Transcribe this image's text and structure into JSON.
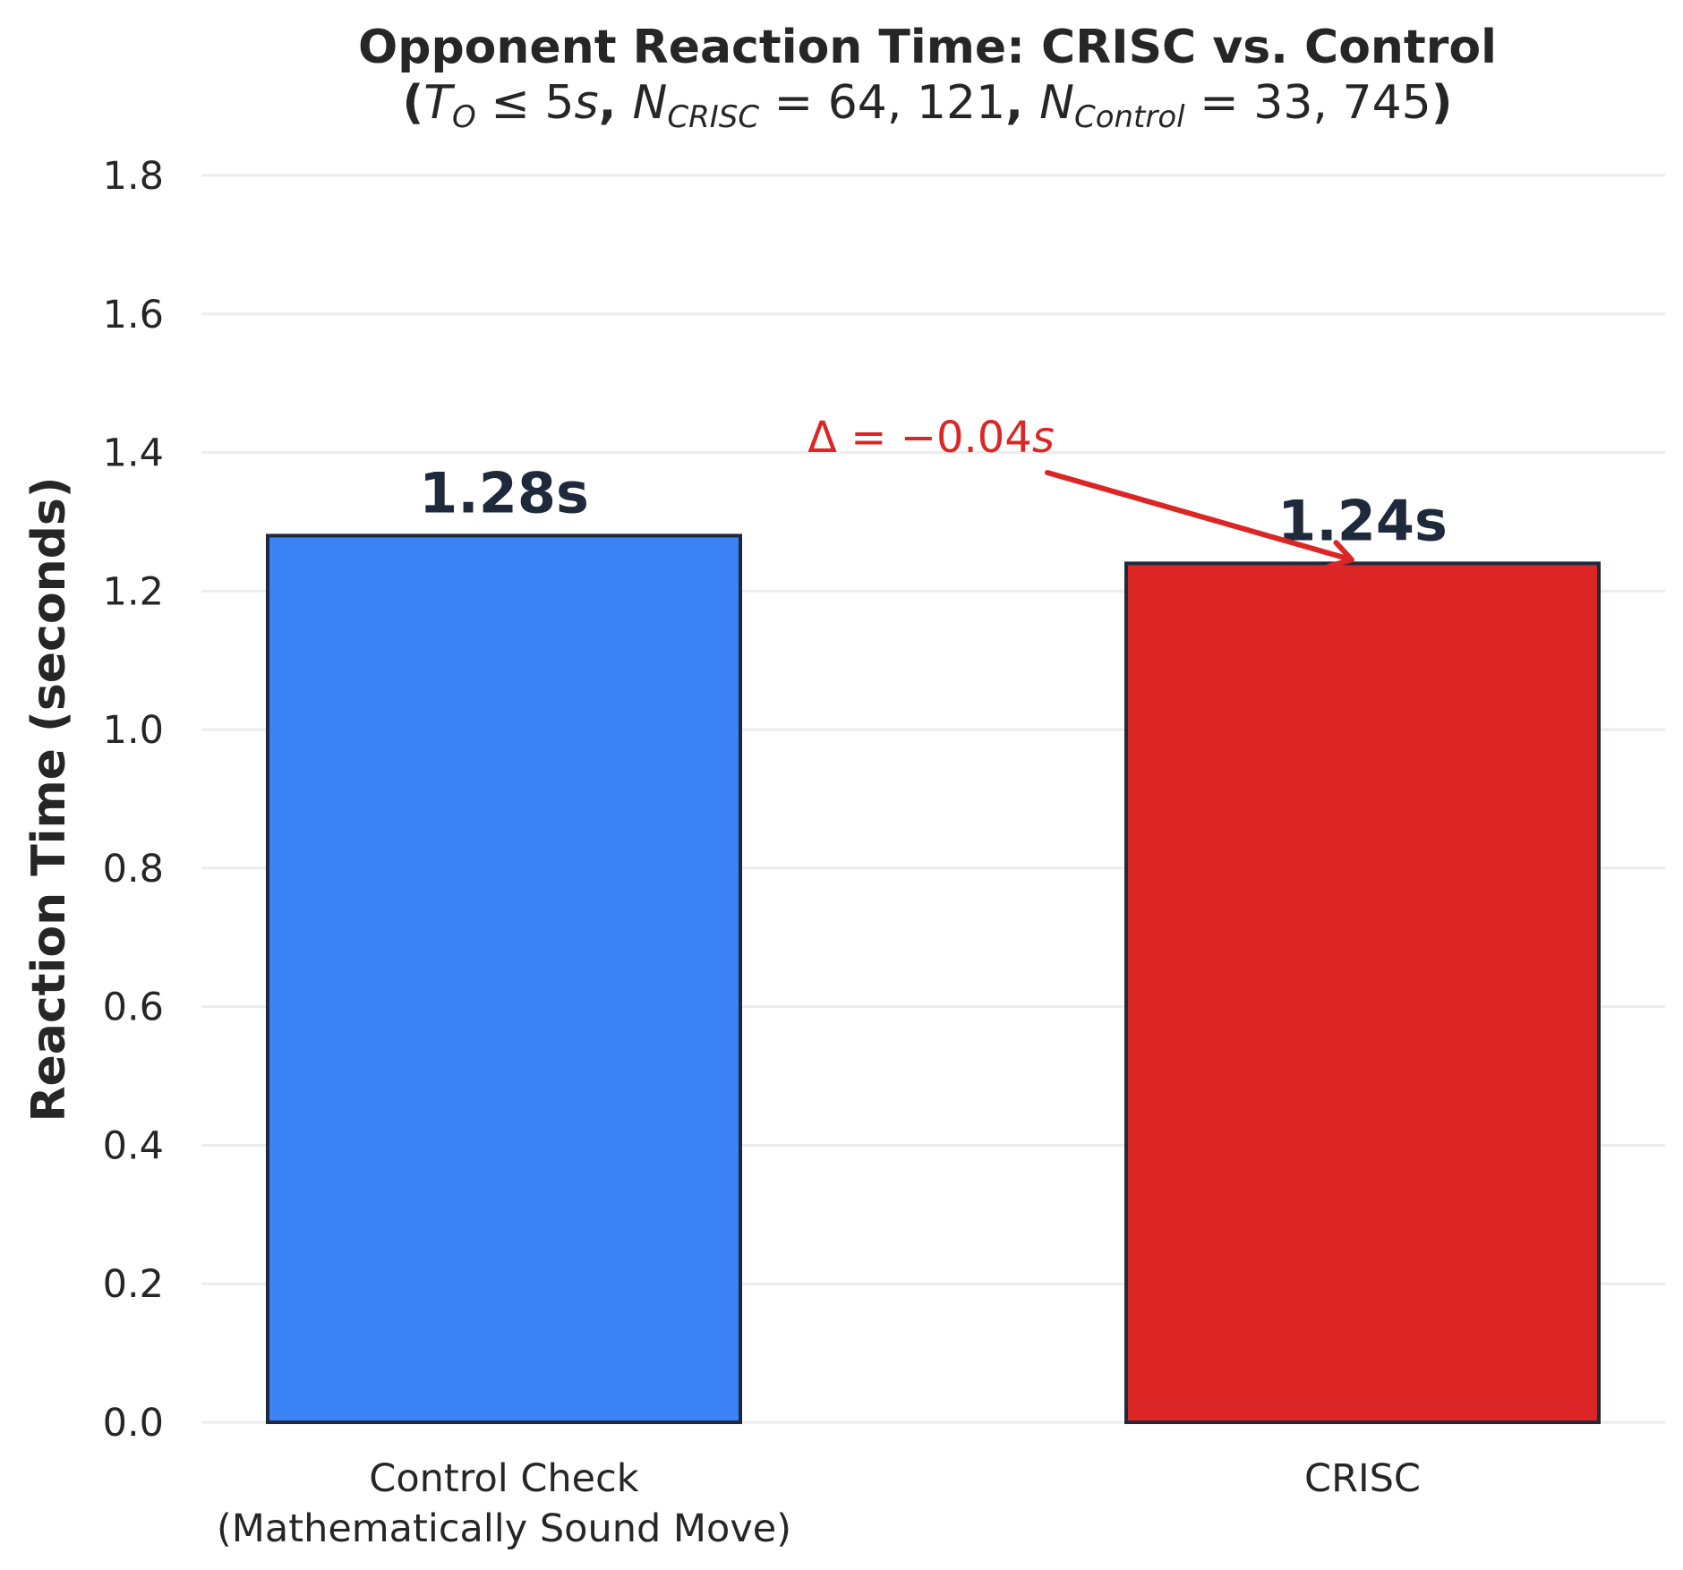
{
  "chart_data": {
    "type": "bar",
    "title": "Opponent Reaction Time: CRISC vs. Control",
    "subtitle": {
      "open": "(",
      "t_sym": "T",
      "t_sub": "O",
      "t_cond": " ≤ 5",
      "t_unit": "s",
      "sep1": ", ",
      "n1_sym": "N",
      "n1_sub": "CRISC",
      "n1_val": " = 64, 121",
      "sep2": ", ",
      "n2_sym": "N",
      "n2_sub": "Control",
      "n2_val": " = 33, 745",
      "close": ")"
    },
    "ylabel": "Reaction Time (seconds)",
    "xlabel": "",
    "ylim": [
      0,
      1.8
    ],
    "yticks": [
      "0.0",
      "0.2",
      "0.4",
      "0.6",
      "0.8",
      "1.0",
      "1.2",
      "1.4",
      "1.6",
      "1.8"
    ],
    "grid": "horizontal",
    "categories": [
      [
        "Control Check",
        "(Mathematically Sound Move)"
      ],
      [
        "CRISC"
      ]
    ],
    "values": [
      1.28,
      1.24
    ],
    "value_labels": [
      "1.28s",
      "1.24s"
    ],
    "colors": [
      "#3b82f6",
      "#dc2626"
    ],
    "edge_color": "#1e293b",
    "annotation": {
      "delta": "Δ",
      "eq": " = −0.04",
      "unit": "s",
      "color": "#dc2626",
      "points_to_category": 1
    }
  }
}
